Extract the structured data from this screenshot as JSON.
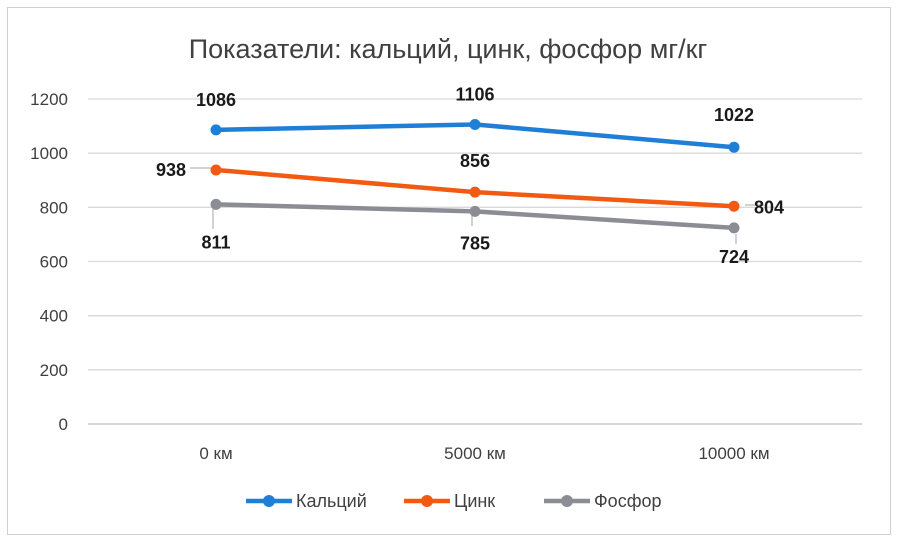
{
  "chart_data": {
    "type": "line",
    "title": "Показатели: кальций, цинк, фосфор мг/кг",
    "categories": [
      "0 км",
      "5000 км",
      "10000 км"
    ],
    "ylim": [
      0,
      1200
    ],
    "yticks": [
      0,
      200,
      400,
      600,
      800,
      1000,
      1200
    ],
    "grid": true,
    "legend_position": "bottom",
    "series": [
      {
        "name": "Кальций",
        "color": "#1f7fd6",
        "values": [
          1086,
          1106,
          1022
        ]
      },
      {
        "name": "Цинк",
        "color": "#f25a12",
        "values": [
          938,
          856,
          804
        ]
      },
      {
        "name": "Фосфор",
        "color": "#8c8c94",
        "values": [
          811,
          785,
          724
        ]
      }
    ]
  }
}
